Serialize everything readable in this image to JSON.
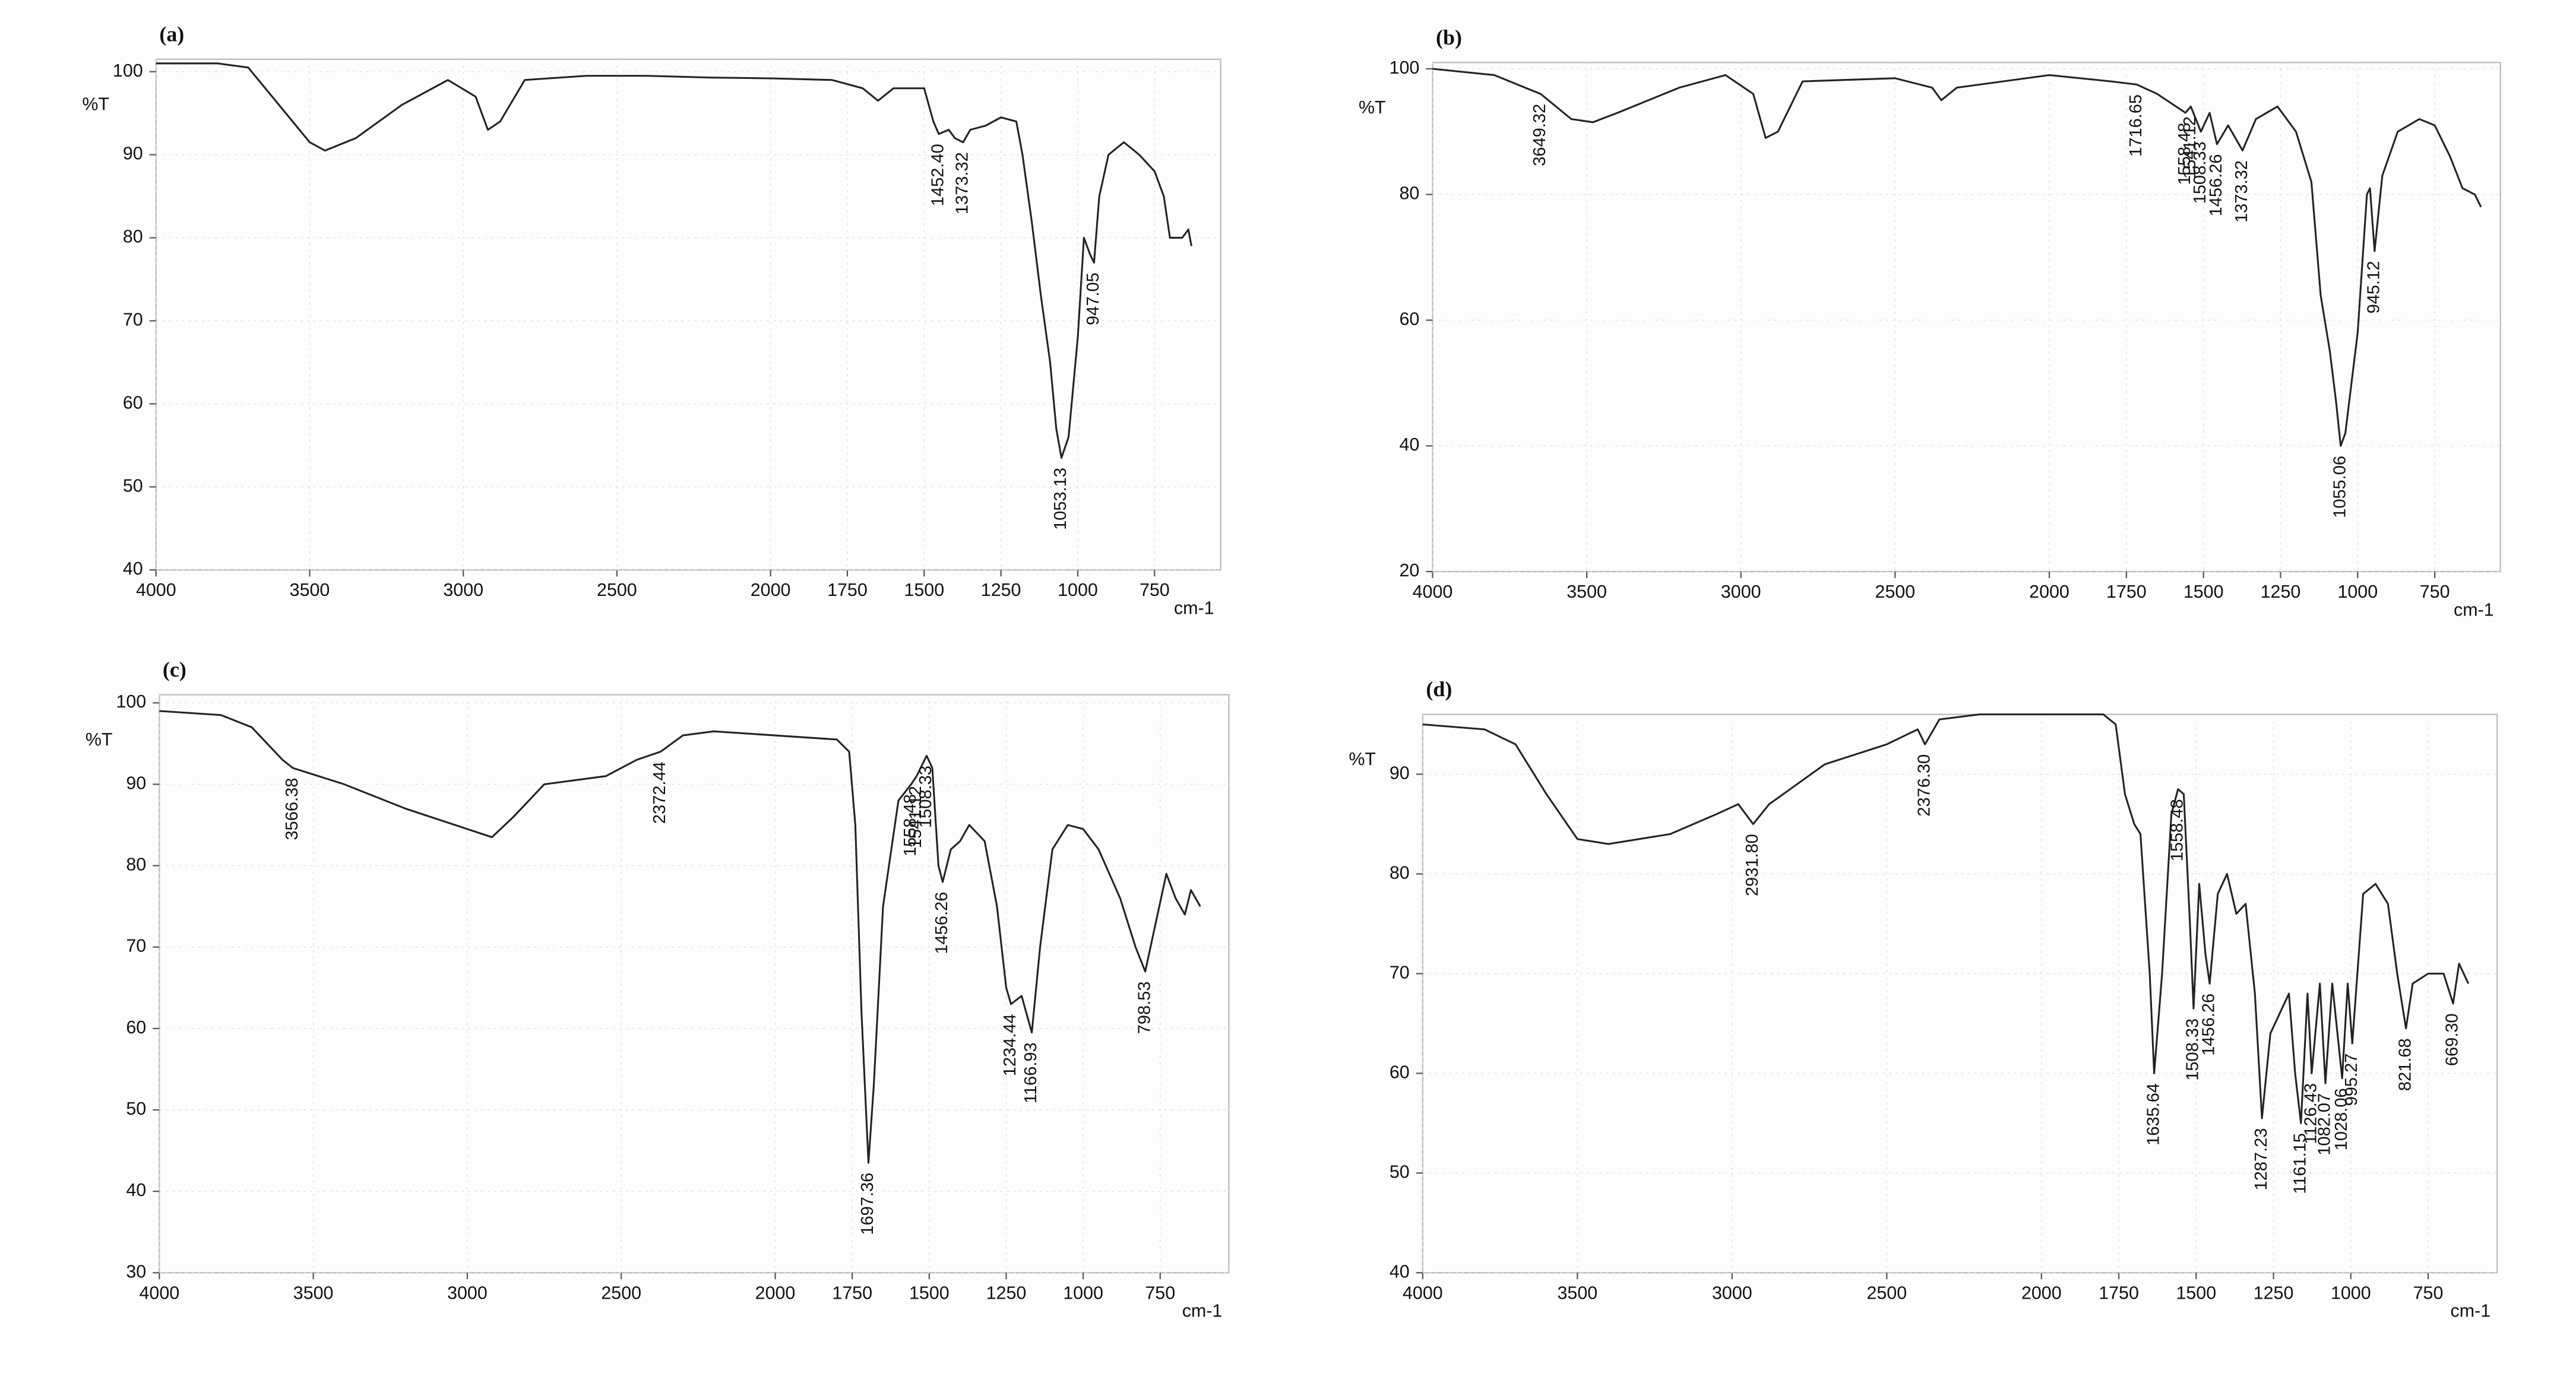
{
  "chart_data": [
    {
      "type": "line",
      "title": "(a)",
      "y_label": "%T",
      "x_label": "cm-1",
      "grid": true,
      "xlim": [
        4000,
        535
      ],
      "ylim": [
        40,
        101.5
      ],
      "xticks": [
        4000,
        3500,
        3000,
        2500,
        2000,
        1750,
        1500,
        1250,
        1000,
        750
      ],
      "yticks": [
        40,
        50,
        60,
        70,
        80,
        90,
        100
      ],
      "x": [
        4000,
        3800,
        3700,
        3600,
        3500,
        3450,
        3350,
        3200,
        3050,
        2960,
        2920,
        2880,
        2800,
        2600,
        2400,
        2200,
        2000,
        1800,
        1700,
        1650,
        1600,
        1500,
        1470,
        1452.4,
        1420,
        1400,
        1373.32,
        1350,
        1300,
        1250,
        1200,
        1180,
        1150,
        1120,
        1090,
        1070,
        1053.13,
        1030,
        1000,
        980,
        960,
        947.05,
        930,
        900,
        850,
        800,
        750,
        720,
        700,
        660,
        640,
        630
      ],
      "series": [
        {
          "color": "#222222",
          "values": [
            101,
            101,
            100.5,
            96,
            91.5,
            90.5,
            92,
            96,
            99,
            97,
            93,
            94,
            99,
            99.5,
            99.5,
            99.3,
            99.2,
            99,
            98,
            96.5,
            98,
            98,
            94,
            92.5,
            93,
            92,
            91.5,
            93,
            93.5,
            94.5,
            94,
            90,
            82,
            73,
            65,
            57,
            53.5,
            56,
            68,
            80,
            78,
            77,
            85,
            90,
            91.5,
            90,
            88,
            85,
            80,
            80,
            81,
            79
          ]
        }
      ],
      "annotations": [
        {
          "value": 1452.4,
          "label": "1452.40"
        },
        {
          "value": 1373.32,
          "label": "1373.32"
        },
        {
          "value": 1053.13,
          "label": "1053.13"
        },
        {
          "value": 947.05,
          "label": "947.05"
        }
      ]
    },
    {
      "type": "line",
      "title": "(b)",
      "y_label": "%T",
      "x_label": "cm-1",
      "grid": true,
      "xlim": [
        4000,
        537
      ],
      "ylim": [
        20,
        101
      ],
      "xticks": [
        4000,
        3500,
        3000,
        2500,
        2000,
        1750,
        1500,
        1250,
        1000,
        750
      ],
      "yticks": [
        20,
        40,
        60,
        80,
        100
      ],
      "x": [
        4000,
        3800,
        3700,
        3649.32,
        3550,
        3480,
        3400,
        3200,
        3050,
        2960,
        2920,
        2880,
        2800,
        2500,
        2380,
        2350,
        2300,
        2000,
        1800,
        1716.65,
        1650,
        1558.48,
        1541.12,
        1508.33,
        1480,
        1456.26,
        1420,
        1373.32,
        1330,
        1260,
        1200,
        1150,
        1120,
        1090,
        1070,
        1055.06,
        1040,
        1000,
        970,
        960,
        945.12,
        920,
        870,
        800,
        750,
        700,
        660,
        620,
        600
      ],
      "series": [
        {
          "color": "#222222",
          "values": [
            100,
            99,
            97,
            96,
            92,
            91.5,
            93,
            97,
            99,
            96,
            89,
            90,
            98,
            98.5,
            97,
            95,
            97,
            99,
            98,
            97.5,
            96,
            93,
            94,
            90,
            93,
            88,
            91,
            87,
            92,
            94,
            90,
            82,
            64,
            55,
            47,
            40,
            42,
            58,
            80,
            81,
            71,
            83,
            90,
            92,
            91,
            86,
            81,
            80,
            78
          ]
        }
      ],
      "annotations": [
        {
          "value": 3649.32,
          "label": "3649.32"
        },
        {
          "value": 1716.65,
          "label": "1716.65"
        },
        {
          "value": 1558.48,
          "label": "1558.48"
        },
        {
          "value": 1541.12,
          "label": "1541.12"
        },
        {
          "value": 1508.33,
          "label": "1508.33"
        },
        {
          "value": 1456.26,
          "label": "1456.26"
        },
        {
          "value": 1373.32,
          "label": "1373.32"
        },
        {
          "value": 1055.06,
          "label": "1055.06"
        },
        {
          "value": 945.12,
          "label": "945.12"
        }
      ]
    },
    {
      "type": "line",
      "title": "(c)",
      "y_label": "%T",
      "x_label": "cm-1",
      "grid": true,
      "xlim": [
        4000,
        527
      ],
      "ylim": [
        30,
        101
      ],
      "xticks": [
        4000,
        3500,
        3000,
        2500,
        2000,
        1750,
        1500,
        1250,
        1000,
        750
      ],
      "yticks": [
        30,
        40,
        50,
        60,
        70,
        80,
        90,
        100
      ],
      "x": [
        4000,
        3800,
        3700,
        3600,
        3566.38,
        3400,
        3200,
        3000,
        2920,
        2850,
        2750,
        2650,
        2550,
        2450,
        2372.44,
        2300,
        2200,
        2000,
        1800,
        1760,
        1740,
        1720,
        1697.36,
        1680,
        1650,
        1600,
        1558.48,
        1541.12,
        1508.33,
        1490,
        1470,
        1456.26,
        1430,
        1400,
        1370,
        1320,
        1280,
        1250,
        1234.44,
        1200,
        1166.93,
        1140,
        1100,
        1050,
        1000,
        950,
        880,
        830,
        798.53,
        770,
        730,
        700,
        670,
        650,
        620
      ],
      "series": [
        {
          "color": "#222222",
          "values": [
            99,
            98.5,
            97,
            93,
            92,
            90,
            87,
            84.5,
            83.5,
            86,
            90,
            90.5,
            91,
            93,
            94,
            96,
            96.5,
            96,
            95.5,
            94,
            85,
            62,
            43.5,
            53,
            75,
            88,
            90,
            91,
            93.5,
            92,
            80,
            78,
            82,
            83,
            85,
            83,
            75,
            65,
            63,
            64,
            59.5,
            70,
            82,
            85,
            84.5,
            82,
            76,
            70,
            67,
            72,
            79,
            76,
            74,
            77,
            75
          ]
        }
      ],
      "annotations": [
        {
          "value": 3566.38,
          "label": "3566.38"
        },
        {
          "value": 2372.44,
          "label": "2372.44"
        },
        {
          "value": 1697.36,
          "label": "1697.36"
        },
        {
          "value": 1558.48,
          "label": "1558.48"
        },
        {
          "value": 1541.12,
          "label": "1541.12"
        },
        {
          "value": 1508.33,
          "label": "1508.33"
        },
        {
          "value": 1456.26,
          "label": "1456.26"
        },
        {
          "value": 1234.44,
          "label": "1234.44"
        },
        {
          "value": 1166.93,
          "label": "1166.93"
        },
        {
          "value": 798.53,
          "label": "798.53"
        }
      ]
    },
    {
      "type": "line",
      "title": "(d)",
      "y_label": "%T",
      "x_label": "cm-1",
      "grid": true,
      "xlim": [
        4000,
        527
      ],
      "ylim": [
        40,
        96
      ],
      "xticks": [
        4000,
        3500,
        3000,
        2500,
        2000,
        1750,
        1500,
        1250,
        1000,
        750
      ],
      "yticks": [
        40,
        50,
        60,
        70,
        80,
        90
      ],
      "x": [
        4000,
        3800,
        3700,
        3600,
        3500,
        3400,
        3200,
        3050,
        2980,
        2931.8,
        2880,
        2700,
        2500,
        2400,
        2376.3,
        2330,
        2200,
        2000,
        1800,
        1760,
        1730,
        1700,
        1680,
        1650,
        1635.64,
        1610,
        1580,
        1558.48,
        1540,
        1520,
        1508.33,
        1490,
        1470,
        1456.26,
        1430,
        1400,
        1370,
        1340,
        1310,
        1287.23,
        1260,
        1230,
        1200,
        1180,
        1161.15,
        1140,
        1126.43,
        1100,
        1082.07,
        1060,
        1028.06,
        1010,
        995.27,
        960,
        920,
        880,
        850,
        821.68,
        800,
        750,
        700,
        669.3,
        650,
        620
      ],
      "series": [
        {
          "color": "#222222",
          "values": [
            95,
            94.5,
            93,
            88,
            83.5,
            83,
            84,
            86,
            87,
            85,
            87,
            91,
            93,
            94.5,
            93,
            95.5,
            96,
            96,
            96,
            95,
            88,
            85,
            84,
            70,
            60,
            70,
            86,
            88.5,
            88,
            75,
            66.5,
            79,
            72,
            69,
            78,
            80,
            76,
            77,
            68,
            55.5,
            64,
            66,
            68,
            60,
            55,
            68,
            60,
            69,
            59,
            69,
            59.5,
            69,
            63,
            78,
            79,
            77,
            70,
            64.5,
            69,
            70,
            70,
            67,
            71,
            69
          ]
        }
      ],
      "annotations": [
        {
          "value": 2931.8,
          "label": "2931.80"
        },
        {
          "value": 2376.3,
          "label": "2376.30"
        },
        {
          "value": 1635.64,
          "label": "1635.64"
        },
        {
          "value": 1558.48,
          "label": "1558.48"
        },
        {
          "value": 1508.33,
          "label": "1508.33"
        },
        {
          "value": 1456.26,
          "label": "1456.26"
        },
        {
          "value": 1287.23,
          "label": "1287.23"
        },
        {
          "value": 1161.15,
          "label": "1161.15"
        },
        {
          "value": 1126.43,
          "label": "1126.43"
        },
        {
          "value": 1082.07,
          "label": "1082.07"
        },
        {
          "value": 1028.06,
          "label": "1028.06"
        },
        {
          "value": 995.27,
          "label": "995.27"
        },
        {
          "value": 821.68,
          "label": "821.68"
        },
        {
          "value": 669.3,
          "label": "669.30"
        }
      ]
    }
  ]
}
